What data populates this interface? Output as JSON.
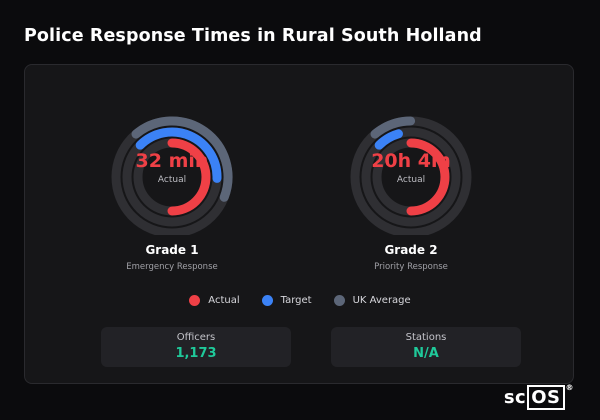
{
  "title": "Police Response Times in Rural South Holland",
  "colors": {
    "actual": "#ef4046",
    "target": "#3b82f6",
    "uk_average": "#5c6678",
    "track": "#2f2f33",
    "stat_value": "#1fc99a"
  },
  "gauges": [
    {
      "value_text": "32 min",
      "sub": "Actual",
      "name": "Grade 1",
      "description": "Emergency Response",
      "actual_fraction": 0.5,
      "target_fraction": 0.17,
      "uk_fraction": 0.2
    },
    {
      "value_text": "20h 4m",
      "sub": "Actual",
      "name": "Grade 2",
      "description": "Priority Response",
      "actual_fraction": 0.5,
      "target_fraction": 0.04,
      "uk_fraction": 0.05
    }
  ],
  "legend": [
    {
      "label": "Actual",
      "color_key": "actual"
    },
    {
      "label": "Target",
      "color_key": "target"
    },
    {
      "label": "UK Average",
      "color_key": "uk_average"
    }
  ],
  "stats": [
    {
      "label": "Officers",
      "value": "1,173"
    },
    {
      "label": "Stations",
      "value": "N/A"
    }
  ],
  "logo": {
    "prefix": "sc",
    "boxed": "OS",
    "mark": "®"
  }
}
